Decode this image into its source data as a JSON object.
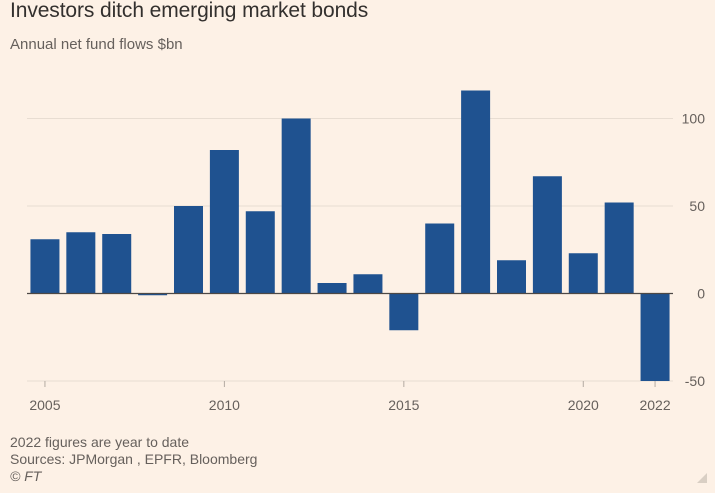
{
  "header": {
    "title": "Investors ditch emerging market bonds",
    "subtitle": "Annual net fund flows $bn"
  },
  "chart_data": {
    "type": "bar",
    "title": "Investors ditch emerging market bonds",
    "subtitle": "Annual net fund flows $bn",
    "xlabel": "",
    "ylabel": "Annual net fund flows $bn",
    "categories": [
      "2005",
      "2006",
      "2007",
      "2008",
      "2009",
      "2010",
      "2011",
      "2012",
      "2013",
      "2014",
      "2015",
      "2016",
      "2017",
      "2018",
      "2019",
      "2020",
      "2021",
      "2022"
    ],
    "values": [
      31,
      35,
      34,
      -1,
      50,
      82,
      47,
      100,
      6,
      11,
      -21,
      40,
      116,
      19,
      67,
      23,
      52,
      -50
    ],
    "ylim": [
      -50,
      125
    ],
    "yticks": [
      100,
      50,
      0,
      -50
    ],
    "ytick_labels": [
      "100",
      "50",
      "0",
      "-50"
    ],
    "xtick_labels": [
      {
        "category": "2005",
        "label": "2005"
      },
      {
        "category": "2010",
        "label": "2010"
      },
      {
        "category": "2015",
        "label": "2015"
      },
      {
        "category": "2020",
        "label": "2020"
      },
      {
        "category": "2022",
        "label": "2022"
      }
    ],
    "bar_color": "#1f5290",
    "grid": true
  },
  "footer": {
    "note": "2022 figures are year to date",
    "sources": "Sources: JPMorgan , EPFR, Bloomberg",
    "copyright": "© FT"
  },
  "colors": {
    "background": "#fdf1e6",
    "bar": "#1f5290",
    "text": "#33302e",
    "muted": "#66605c"
  }
}
